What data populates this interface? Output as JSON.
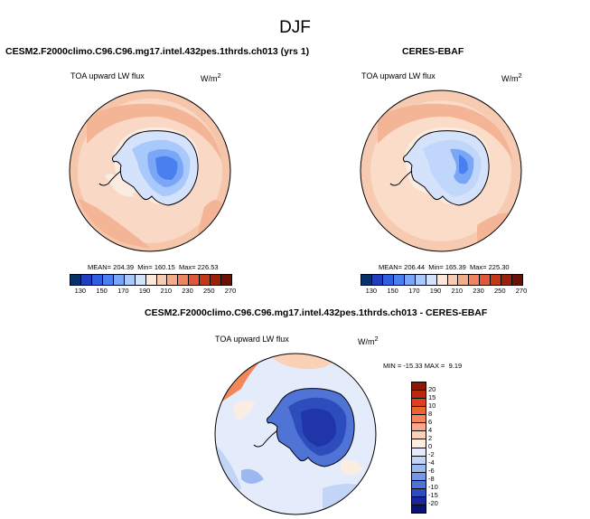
{
  "figure": {
    "title": "DJF"
  },
  "panels": [
    {
      "title": "CESM2.F2000climo.C96.C96.mg17.intel.432pes.1thrds.ch013 (yrs 1)",
      "left_label": "TOA upward LW flux",
      "units": "W/m",
      "units_sup": "2",
      "stats": {
        "mean_label": "MEAN=",
        "mean": "204.39",
        "min_label": "Min=",
        "min": "160.15",
        "max_label": "Max=",
        "max": "226.53"
      }
    },
    {
      "title": "CERES-EBAF",
      "left_label": "TOA upward LW flux",
      "units": "W/m",
      "units_sup": "2",
      "stats": {
        "mean_label": "MEAN=",
        "mean": "206.44",
        "min_label": "Min=",
        "min": "165.39",
        "max_label": "Max=",
        "max": "225.30"
      }
    },
    {
      "title": "CESM2.F2000climo.C96.C96.mg17.intel.432pes.1thrds.ch013 - CERES-EBAF",
      "left_label": "TOA upward LW flux",
      "units": "W/m",
      "units_sup": "2",
      "stats": {
        "min_label": "MIN =",
        "min": "-15.33",
        "max_label": "MAX =",
        "max": "9.19"
      }
    }
  ],
  "colorbar_abs": {
    "ticks": [
      "130",
      "150",
      "170",
      "190",
      "210",
      "230",
      "250",
      "270"
    ],
    "colors": [
      "#08306b",
      "#1f3fbf",
      "#2f5ee0",
      "#4a7ff0",
      "#7aa6f7",
      "#a9c8fb",
      "#d4e3fb",
      "#fbe8dc",
      "#f8ccb2",
      "#f4ab88",
      "#ee8560",
      "#dd5a38",
      "#c23818",
      "#9a2008",
      "#6b1004"
    ]
  },
  "colorbar_diff": {
    "ticks": [
      "20",
      "15",
      "10",
      "8",
      "6",
      "4",
      "2",
      "0",
      "-2",
      "-4",
      "-6",
      "-8",
      "-10",
      "-15",
      "-20"
    ],
    "colors": [
      "#8a1a06",
      "#b82a0e",
      "#d8431d",
      "#ea6436",
      "#f3875c",
      "#f7aa85",
      "#fad0b6",
      "#fbede2",
      "#e4ecfb",
      "#c3d5f7",
      "#9bb9f0",
      "#7498e6",
      "#4f74d6",
      "#2e4dbd",
      "#18289a",
      "#0a1470"
    ]
  },
  "chart_data": [
    {
      "type": "heatmap",
      "title": "CESM2.F2000climo.C96.C96.mg17.intel.432pes.1thrds.ch013 (yrs 1)",
      "projection": "south-polar-stereographic",
      "variable": "TOA upward LW flux",
      "units": "W/m2",
      "mean": 204.39,
      "min": 160.15,
      "max": 226.53,
      "color_levels": [
        130,
        150,
        170,
        190,
        210,
        230,
        250,
        270
      ]
    },
    {
      "type": "heatmap",
      "title": "CERES-EBAF",
      "projection": "south-polar-stereographic",
      "variable": "TOA upward LW flux",
      "units": "W/m2",
      "mean": 206.44,
      "min": 165.39,
      "max": 225.3,
      "color_levels": [
        130,
        150,
        170,
        190,
        210,
        230,
        250,
        270
      ]
    },
    {
      "type": "heatmap",
      "title": "CESM2.F2000climo.C96.C96.mg17.intel.432pes.1thrds.ch013 - CERES-EBAF",
      "projection": "south-polar-stereographic",
      "variable": "TOA upward LW flux",
      "units": "W/m2",
      "min": -15.33,
      "max": 9.19,
      "color_levels": [
        20,
        15,
        10,
        8,
        6,
        4,
        2,
        0,
        -2,
        -4,
        -6,
        -8,
        -10,
        -15,
        -20
      ]
    }
  ]
}
